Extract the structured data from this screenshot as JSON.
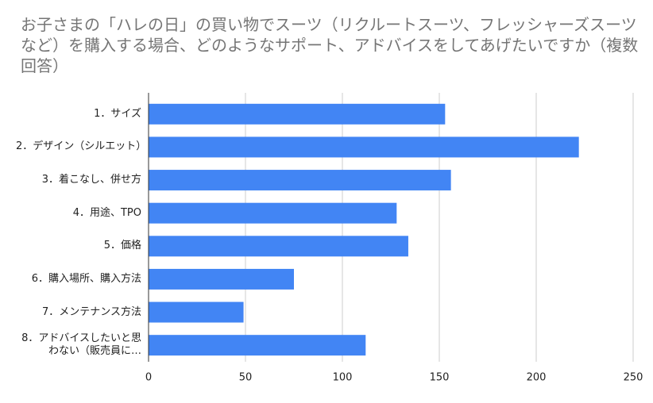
{
  "chart_data": {
    "type": "hbar",
    "title": "お子さまの「ハレの日」の買い物でスーツ（リクルートスーツ、フレッシャーズスーツなど）を購入する場合、どのようなサポート、アドバイスをしてあげたいですか（複数回答）",
    "categories": [
      "1．サイズ",
      "2．デザイン（シルエット）",
      "3．着こなし、併せ方",
      "4．用途、TPO",
      "5．価格",
      "6．購入場所、購入方法",
      "7．メンテナンス方法",
      "8．アドバイスしたいと思わない（販売員に…"
    ],
    "values": [
      153,
      222,
      156,
      128,
      134,
      75,
      49,
      112
    ],
    "color": "#4285f4",
    "xlim": [
      0,
      250
    ],
    "xticks": [
      0,
      50,
      100,
      150,
      200,
      250
    ],
    "grid": true
  }
}
